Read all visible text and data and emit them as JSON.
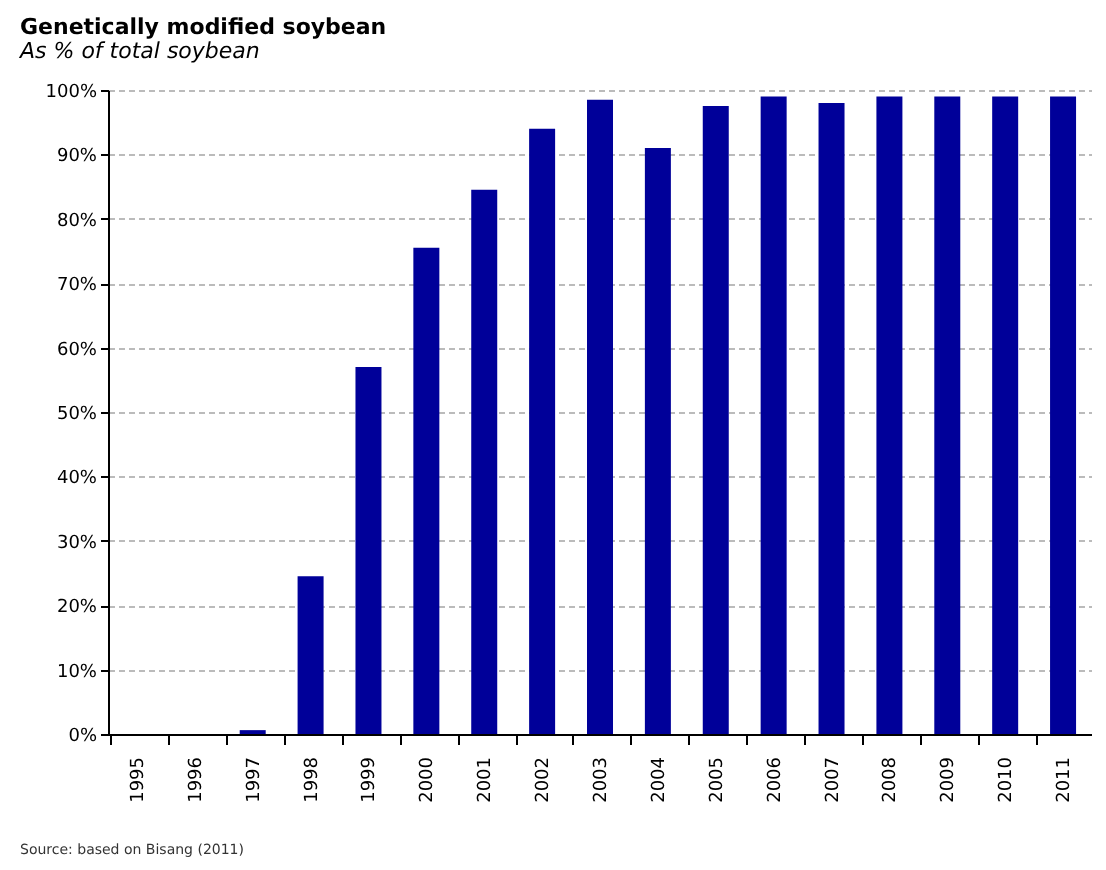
{
  "chart_data": {
    "type": "bar",
    "title": "Genetically modified soybean",
    "subtitle": "As % of total soybean",
    "categories": [
      "1995",
      "1996",
      "1997",
      "1998",
      "1999",
      "2000",
      "2001",
      "2002",
      "2003",
      "2004",
      "2005",
      "2006",
      "2007",
      "2008",
      "2009",
      "2010",
      "2011"
    ],
    "values": [
      0,
      0,
      0.6,
      24.5,
      57,
      75.5,
      84.5,
      94,
      98.5,
      91,
      97.5,
      99,
      98,
      99,
      99,
      99,
      99
    ],
    "color": "#000099",
    "ylim": [
      0,
      100
    ],
    "yticks": [
      {
        "value": 0,
        "label": "0%"
      },
      {
        "value": 10,
        "label": "10%"
      },
      {
        "value": 20,
        "label": "20%"
      },
      {
        "value": 30,
        "label": "30%"
      },
      {
        "value": 40,
        "label": "40%"
      },
      {
        "value": 50,
        "label": "50%"
      },
      {
        "value": 60,
        "label": "60%"
      },
      {
        "value": 70,
        "label": "70%"
      },
      {
        "value": 80,
        "label": "80%"
      },
      {
        "value": 90,
        "label": "90%"
      },
      {
        "value": 100,
        "label": "100%"
      }
    ],
    "grid": "y",
    "line_style": "dashed",
    "annotations": [
      "Source: based on Bisang (2011)"
    ]
  }
}
